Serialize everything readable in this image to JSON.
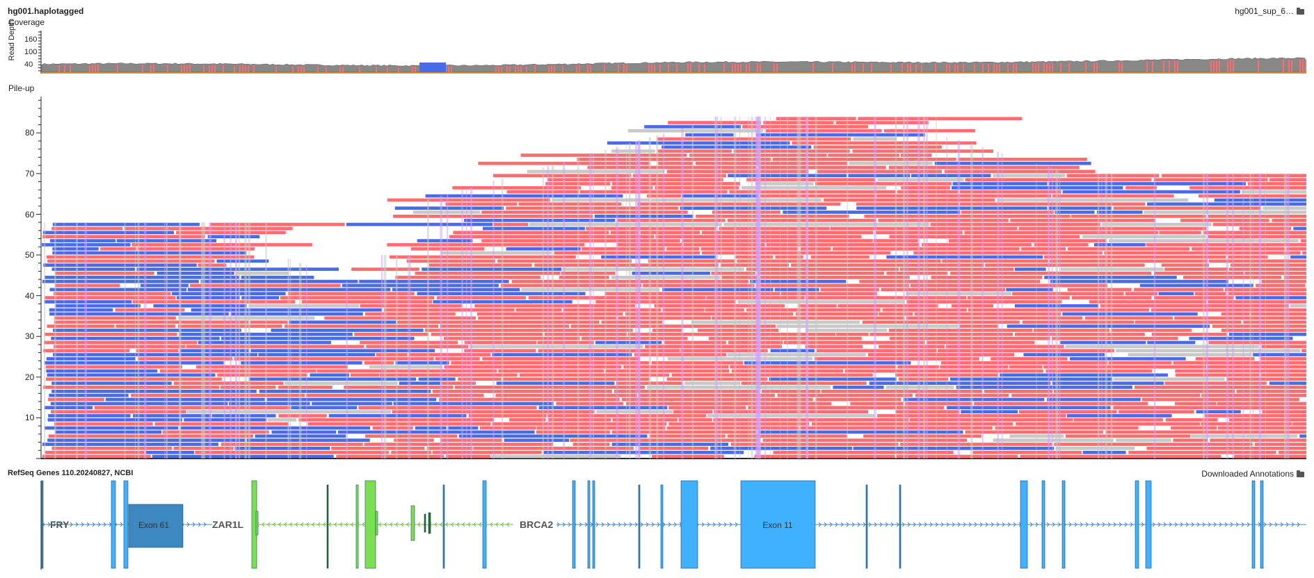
{
  "tracks": {
    "alignment_name": "hg001.haplotagged",
    "alignment_source": "hg001_sup_6…",
    "coverage_label": "Coverage",
    "coverage_axis_title": "Read Depth",
    "coverage_ticks": [
      "160",
      "100",
      "40"
    ],
    "pileup_label": "Pile-up",
    "pileup_ticks": [
      "80",
      "70",
      "60",
      "50",
      "40",
      "30",
      "20",
      "10"
    ],
    "annotation_name": "RefSeq Genes 110.20240827, NCBI",
    "annotation_source": "Downloaded Annotations"
  },
  "colors": {
    "haplotype_1": "#ff6b6e",
    "haplotype_2": "#4a6be8",
    "untagged": "#c8c8c8",
    "coverage_fill": "#888888",
    "gene_blue": "#3fb1ff",
    "gene_dark_blue": "#3d88c0",
    "gene_green": "#7ae052"
  },
  "genes": [
    {
      "name": "FRY",
      "strand": "+"
    },
    {
      "name": "ZAR1L",
      "strand": "-"
    },
    {
      "name": "BRCA2",
      "strand": "+"
    }
  ],
  "exon_labels": [
    "Exon 61",
    "Exon 11"
  ]
}
